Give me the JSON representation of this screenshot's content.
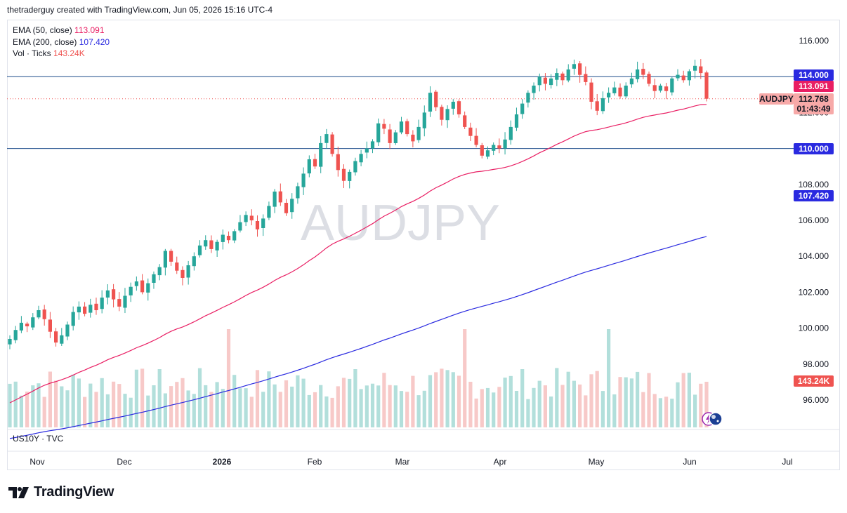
{
  "header": {
    "credit": "thetraderguy created with TradingView.com, Jun 05, 2026 15:16 UTC-4"
  },
  "legend": {
    "ema50_label": "EMA (50, close)",
    "ema50_value": "113.091",
    "ema200_label": "EMA (200, close)",
    "ema200_value": "107.420",
    "vol_label": "Vol · Ticks",
    "vol_value": "143.24K"
  },
  "watermark": "AUDJPY",
  "indicator_label": "US10Y · TVC",
  "logo_text": "TradingView",
  "colors": {
    "up": "#26a69a",
    "down": "#ef5350",
    "ema50": "#e91e63",
    "ema200": "#2a2ae0",
    "hline": "#1e4d8c",
    "badge": "#2a2ae0"
  },
  "chart_data": {
    "type": "candlestick",
    "symbol": "AUDJPY",
    "y_ticks": [
      "116.000",
      "114.000",
      "112.000",
      "110.000",
      "108.000",
      "106.000",
      "104.000",
      "102.000",
      "100.000",
      "98.000",
      "96.000"
    ],
    "x_ticks": [
      "Nov",
      "Dec",
      "2026",
      "Feb",
      "Mar",
      "Apr",
      "May",
      "Jun",
      "Jul"
    ],
    "horizontal_levels": [
      "114.000",
      "110.000"
    ],
    "price_badges": {
      "level_high": "114.000",
      "ema50": "113.091",
      "symbol": "AUDJPY",
      "last_price": "112.768",
      "countdown": "01:43:49",
      "level_low": "110.000",
      "ema200": "107.420",
      "volume": "143.24K"
    },
    "closes": [
      99.4,
      99.9,
      100.3,
      100.1,
      100.6,
      101.0,
      100.5,
      99.8,
      99.2,
      99.6,
      100.2,
      100.9,
      101.2,
      100.8,
      101.3,
      101.0,
      101.7,
      102.1,
      101.6,
      101.2,
      101.8,
      102.3,
      102.6,
      102.0,
      102.5,
      103.0,
      103.4,
      104.3,
      103.7,
      103.2,
      102.8,
      103.5,
      104.0,
      104.6,
      104.9,
      104.4,
      104.8,
      105.2,
      104.9,
      105.4,
      105.9,
      106.3,
      106.0,
      105.5,
      106.1,
      106.8,
      107.6,
      107.0,
      106.4,
      107.2,
      107.9,
      108.6,
      109.4,
      109.0,
      110.3,
      110.8,
      109.7,
      108.8,
      108.2,
      108.7,
      109.3,
      109.7,
      110.0,
      110.4,
      111.4,
      111.1,
      110.3,
      110.9,
      111.5,
      110.8,
      110.4,
      111.2,
      112.0,
      113.1,
      112.3,
      111.6,
      112.2,
      112.6,
      111.9,
      111.2,
      110.7,
      110.2,
      109.6,
      109.9,
      110.2,
      110.0,
      110.5,
      111.2,
      111.9,
      112.5,
      113.1,
      113.5,
      114.0,
      113.6,
      113.9,
      114.2,
      113.8,
      114.4,
      114.7,
      114.1,
      113.7,
      112.6,
      112.1,
      112.8,
      113.1,
      113.4,
      112.9,
      113.5,
      113.9,
      114.4,
      114.1,
      113.6,
      113.2,
      113.5,
      113.2,
      113.9,
      114.1,
      113.8,
      114.3,
      114.6,
      114.2,
      112.768
    ]
  }
}
